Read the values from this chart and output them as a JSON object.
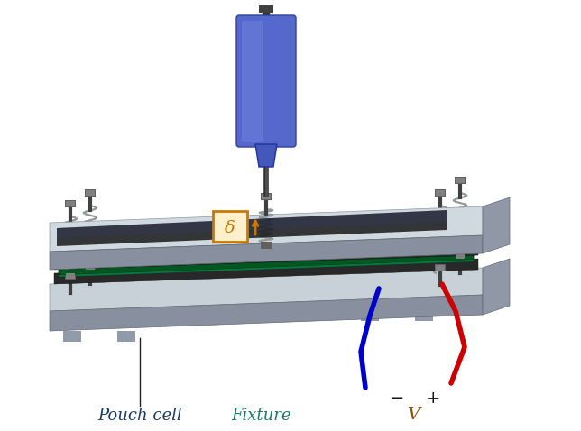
{
  "title": "",
  "background_color": "#ffffff",
  "label_pouch_cell": "Pouch cell",
  "label_fixture": "Fixture",
  "label_voltage": "V",
  "label_delta": "δ",
  "label_minus": "−",
  "label_plus": "+",
  "label_color": "#1a3a6b",
  "fixture_label_color": "#1a7a6b",
  "delta_color": "#cc7700",
  "delta_box_color": "#cc7700",
  "wire_blue_color": "#0000cc",
  "wire_red_color": "#cc0000",
  "plate_color_top": "#b0b8c0",
  "plate_color_side": "#8a9098",
  "plate_dark": "#606870",
  "spring_color": "#909898",
  "bolt_color": "#505858",
  "sensor_color": "#5060cc",
  "sensor_light": "#7080dd",
  "pouch_green": "#006830",
  "pouch_teal": "#008060",
  "foam_dark": "#282828",
  "foam_color": "#383838",
  "metal_gray": "#a8b0b8"
}
